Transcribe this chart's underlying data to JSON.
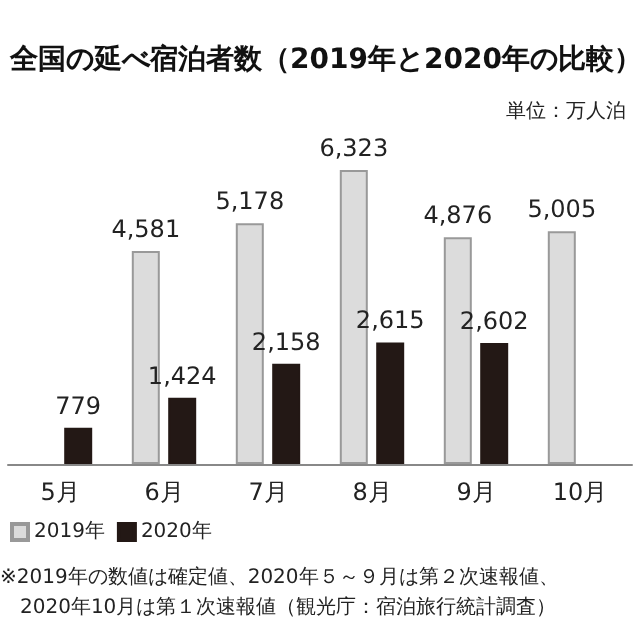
{
  "chart_data": {
    "type": "bar",
    "title": "全国の延べ宿泊者数（2019年と2020年の比較）",
    "subtitle": "単位：万人泊",
    "categories": [
      "5月",
      "6月",
      "7月",
      "8月",
      "9月",
      "10月"
    ],
    "series": [
      {
        "name": "2019年",
        "color": "#dcdcdc",
        "values": [
          null,
          4581,
          5178,
          6323,
          4876,
          5005
        ],
        "value_labels": [
          null,
          "4,581",
          "5,178",
          "6,323",
          "4,876",
          "5,005"
        ]
      },
      {
        "name": "2020年",
        "color": "#231815",
        "values": [
          779,
          1424,
          2158,
          2615,
          2602,
          null
        ],
        "value_labels": [
          "779",
          "1,424",
          "2,158",
          "2,615",
          "2,602",
          null
        ]
      }
    ],
    "legend": "bottom left",
    "annotations": [
      "※2019年の数値は確定値、2020年５～９月は第２次速報値、",
      "2020年10月は第１次速報値（観光庁：宿泊旅行統計調査）"
    ]
  }
}
